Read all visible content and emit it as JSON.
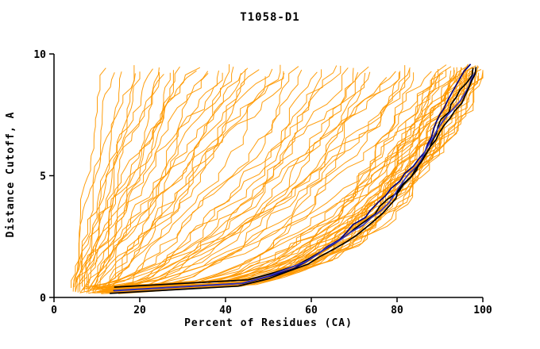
{
  "chart_data": {
    "type": "line",
    "title": "T1058-D1",
    "xlabel": "Percent of Residues (CA)",
    "ylabel": "Distance Cutoff, A",
    "xlim": [
      0,
      100
    ],
    "ylim": [
      0,
      10
    ],
    "x_ticks": [
      0,
      20,
      40,
      60,
      80,
      100
    ],
    "y_ticks": [
      0,
      5,
      10
    ],
    "grid": false,
    "legend": "none",
    "colors": {
      "model_curve": "#ff9900",
      "axis": "#000000",
      "highlights": [
        "#000080",
        "#000000",
        "#3333bb",
        "#000000"
      ]
    },
    "curve_params_format": [
      "x_start_percent",
      "x_end_percent",
      "shape_exponent",
      "wiggle_amplitude",
      "y_top_cutoff_A",
      "seed"
    ],
    "model_curves": [
      [
        4,
        14,
        1.0,
        1.2,
        9.5,
        1
      ],
      [
        5,
        18,
        1.1,
        1.8,
        9.4,
        2
      ],
      [
        4,
        22,
        0.95,
        2.0,
        9.6,
        3
      ],
      [
        6,
        25,
        1.2,
        1.5,
        9.5,
        4
      ],
      [
        5,
        28,
        1.0,
        2.2,
        9.3,
        5
      ],
      [
        7,
        30,
        0.9,
        1.8,
        9.5,
        6
      ],
      [
        4,
        33,
        1.1,
        2.5,
        9.6,
        7
      ],
      [
        6,
        35,
        1.0,
        2.0,
        9.4,
        8
      ],
      [
        8,
        38,
        0.85,
        2.2,
        9.5,
        9
      ],
      [
        5,
        40,
        1.15,
        2.8,
        9.5,
        10
      ],
      [
        9,
        42,
        0.9,
        2.0,
        9.6,
        11
      ],
      [
        6,
        45,
        1.0,
        2.4,
        9.3,
        12
      ],
      [
        10,
        48,
        0.8,
        2.6,
        9.5,
        13
      ],
      [
        7,
        50,
        1.05,
        2.2,
        9.4,
        14
      ],
      [
        11,
        52,
        0.9,
        2.8,
        9.6,
        15
      ],
      [
        8,
        55,
        0.95,
        2.5,
        9.5,
        16
      ],
      [
        5,
        16,
        1.2,
        1.4,
        9.5,
        17
      ],
      [
        6,
        20,
        1.05,
        1.6,
        9.6,
        18
      ],
      [
        9,
        26,
        1.1,
        1.9,
        9.4,
        19
      ],
      [
        10,
        36,
        0.9,
        2.3,
        9.5,
        20
      ],
      [
        12,
        44,
        0.85,
        2.6,
        9.5,
        21
      ],
      [
        7,
        24,
        1.15,
        1.7,
        9.3,
        22
      ],
      [
        8,
        29,
        1.0,
        2.0,
        9.6,
        23
      ],
      [
        11,
        47,
        0.9,
        2.4,
        9.5,
        24
      ],
      [
        4,
        12,
        1.1,
        1.0,
        9.5,
        25
      ],
      [
        13,
        54,
        0.8,
        2.7,
        9.4,
        26
      ],
      [
        6,
        32,
        1.05,
        2.1,
        9.6,
        27
      ],
      [
        9,
        41,
        0.95,
        2.3,
        9.5,
        28
      ],
      [
        12,
        50,
        0.85,
        2.5,
        9.3,
        29
      ],
      [
        5,
        21,
        1.2,
        1.5,
        9.5,
        30
      ],
      [
        6,
        58,
        0.6,
        2.5,
        9.5,
        31
      ],
      [
        8,
        62,
        0.55,
        2.8,
        9.4,
        32
      ],
      [
        10,
        65,
        0.6,
        3.0,
        9.6,
        33
      ],
      [
        7,
        68,
        0.5,
        2.6,
        9.5,
        34
      ],
      [
        9,
        70,
        0.55,
        3.2,
        9.5,
        35
      ],
      [
        11,
        72,
        0.5,
        2.9,
        9.3,
        36
      ],
      [
        8,
        74,
        0.6,
        3.0,
        9.6,
        37
      ],
      [
        12,
        76,
        0.45,
        2.7,
        9.5,
        38
      ],
      [
        10,
        78,
        0.5,
        3.1,
        9.4,
        39
      ],
      [
        9,
        80,
        0.55,
        2.8,
        9.5,
        40
      ],
      [
        13,
        82,
        0.45,
        3.3,
        9.6,
        41
      ],
      [
        11,
        84,
        0.5,
        3.0,
        9.5,
        42
      ],
      [
        14,
        86,
        0.45,
        2.9,
        9.4,
        43
      ],
      [
        7,
        60,
        0.65,
        2.6,
        9.5,
        44
      ],
      [
        12,
        66,
        0.55,
        3.1,
        9.6,
        45
      ],
      [
        10,
        73,
        0.5,
        2.8,
        9.5,
        46
      ],
      [
        8,
        77,
        0.55,
        3.2,
        9.3,
        47
      ],
      [
        13,
        81,
        0.45,
        2.9,
        9.5,
        48
      ],
      [
        9,
        64,
        0.6,
        2.7,
        9.4,
        49
      ],
      [
        11,
        85,
        0.5,
        3.0,
        9.6,
        50
      ],
      [
        10,
        88,
        0.4,
        3.0,
        9.5,
        51
      ],
      [
        12,
        89,
        0.38,
        3.2,
        9.6,
        52
      ],
      [
        9,
        90,
        0.35,
        2.8,
        9.5,
        53
      ],
      [
        14,
        90,
        0.4,
        3.4,
        9.4,
        54
      ],
      [
        11,
        91,
        0.33,
        3.0,
        9.6,
        55
      ],
      [
        13,
        92,
        0.36,
        3.2,
        9.5,
        56
      ],
      [
        8,
        92,
        0.3,
        2.6,
        9.5,
        57
      ],
      [
        15,
        93,
        0.38,
        3.5,
        9.6,
        58
      ],
      [
        10,
        93,
        0.32,
        3.0,
        9.4,
        59
      ],
      [
        12,
        94,
        0.3,
        3.2,
        9.5,
        60
      ],
      [
        9,
        94,
        0.34,
        2.8,
        9.6,
        61
      ],
      [
        14,
        95,
        0.3,
        3.4,
        9.5,
        62
      ],
      [
        11,
        95,
        0.28,
        3.0,
        9.5,
        63
      ],
      [
        13,
        96,
        0.32,
        3.2,
        9.6,
        64
      ],
      [
        10,
        96,
        0.27,
        2.9,
        9.4,
        65
      ],
      [
        16,
        96,
        0.35,
        3.6,
        9.5,
        66
      ],
      [
        12,
        97,
        0.3,
        3.1,
        9.6,
        67
      ],
      [
        9,
        97,
        0.26,
        2.7,
        9.5,
        68
      ],
      [
        14,
        97,
        0.33,
        3.3,
        9.5,
        69
      ],
      [
        11,
        98,
        0.28,
        3.0,
        9.6,
        70
      ],
      [
        13,
        98,
        0.31,
        3.2,
        9.4,
        71
      ],
      [
        10,
        98,
        0.25,
        2.8,
        9.5,
        72
      ],
      [
        15,
        98,
        0.34,
        3.4,
        9.6,
        73
      ],
      [
        12,
        99,
        0.29,
        3.0,
        9.5,
        74
      ],
      [
        9,
        99,
        0.24,
        2.6,
        9.5,
        75
      ],
      [
        14,
        99,
        0.32,
        3.3,
        9.6,
        76
      ],
      [
        11,
        99,
        0.27,
        2.9,
        9.4,
        77
      ],
      [
        13,
        100,
        0.3,
        3.1,
        9.5,
        78
      ],
      [
        10,
        100,
        0.26,
        2.8,
        9.6,
        79
      ],
      [
        16,
        100,
        0.33,
        3.5,
        9.5,
        80
      ],
      [
        12,
        100,
        0.28,
        3.0,
        9.5,
        81
      ],
      [
        15,
        91,
        0.4,
        3.4,
        9.3,
        82
      ],
      [
        8,
        95,
        0.27,
        2.6,
        9.6,
        83
      ],
      [
        16,
        94,
        0.37,
        3.6,
        9.5,
        84
      ],
      [
        13,
        93,
        0.34,
        3.2,
        9.4,
        85
      ],
      [
        11,
        96,
        0.29,
        3.0,
        9.6,
        86
      ],
      [
        9,
        98,
        0.25,
        2.7,
        9.5,
        87
      ],
      [
        14,
        98,
        0.31,
        3.3,
        9.5,
        88
      ],
      [
        12,
        95,
        0.3,
        3.1,
        9.6,
        89
      ],
      [
        10,
        99,
        0.26,
        2.8,
        9.5,
        90
      ]
    ],
    "highlight_curves": [
      {
        "color": "#000080",
        "params": [
          13,
          97,
          0.3,
          1.2,
          9.6,
          101
        ]
      },
      {
        "color": "#000000",
        "params": [
          13.5,
          98,
          0.29,
          1.0,
          9.6,
          102
        ]
      },
      {
        "color": "#3333bb",
        "params": [
          14,
          98.5,
          0.31,
          1.1,
          9.55,
          103
        ]
      },
      {
        "color": "#000000",
        "params": [
          13,
          99,
          0.3,
          0.9,
          9.6,
          104
        ]
      }
    ]
  }
}
